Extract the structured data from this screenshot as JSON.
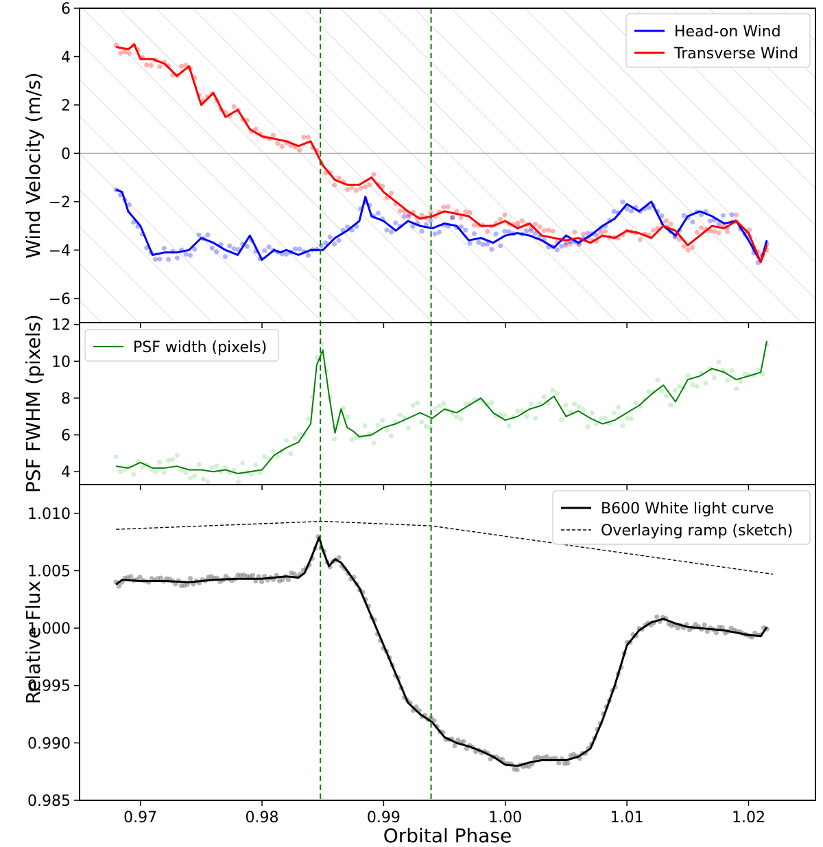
{
  "chart_data": [
    {
      "type": "line",
      "panel": "wind",
      "ylabel": "Wind Velocity (m/s)",
      "xlim": [
        0.965,
        1.0255
      ],
      "ylim": [
        -7,
        6
      ],
      "yticks": [
        -6,
        -4,
        -2,
        0,
        2,
        4,
        6
      ],
      "ytick_labels": [
        "−6",
        "−4",
        "−2",
        "0",
        "2",
        "4",
        "6"
      ],
      "hatched_background": true,
      "zero_line": 0,
      "legend_position": "top-right",
      "series": [
        {
          "name": "Head-on Wind",
          "color": "#0000ff",
          "x": [
            0.968,
            0.9685,
            0.969,
            0.97,
            0.971,
            0.972,
            0.973,
            0.974,
            0.975,
            0.976,
            0.977,
            0.978,
            0.979,
            0.98,
            0.981,
            0.9815,
            0.982,
            0.983,
            0.984,
            0.985,
            0.986,
            0.987,
            0.988,
            0.9885,
            0.989,
            0.99,
            0.991,
            0.992,
            0.993,
            0.994,
            0.995,
            0.996,
            0.997,
            0.998,
            0.999,
            1.0,
            1.001,
            1.002,
            1.003,
            1.004,
            1.005,
            1.006,
            1.007,
            1.008,
            1.009,
            1.01,
            1.011,
            1.012,
            1.013,
            1.014,
            1.015,
            1.016,
            1.017,
            1.018,
            1.019,
            1.02,
            1.021,
            1.0215
          ],
          "y": [
            -1.5,
            -1.6,
            -2.4,
            -3.0,
            -4.2,
            -4.1,
            -4.1,
            -4.0,
            -3.5,
            -3.7,
            -4.0,
            -4.2,
            -3.4,
            -4.4,
            -4.0,
            -4.1,
            -4.0,
            -4.2,
            -4.0,
            -4.0,
            -3.5,
            -3.2,
            -2.8,
            -1.8,
            -2.6,
            -2.8,
            -3.2,
            -2.8,
            -3.0,
            -3.1,
            -2.9,
            -3.0,
            -3.6,
            -3.5,
            -3.7,
            -3.4,
            -3.3,
            -3.4,
            -3.6,
            -3.9,
            -3.4,
            -3.7,
            -3.4,
            -3.0,
            -2.7,
            -2.1,
            -2.4,
            -2.0,
            -3.0,
            -3.4,
            -2.6,
            -2.4,
            -2.6,
            -2.9,
            -2.8,
            -3.6,
            -4.5,
            -3.6
          ]
        },
        {
          "name": "Transverse Wind",
          "color": "#ff0000",
          "x": [
            0.968,
            0.969,
            0.9695,
            0.97,
            0.971,
            0.972,
            0.973,
            0.974,
            0.975,
            0.976,
            0.977,
            0.978,
            0.979,
            0.98,
            0.981,
            0.982,
            0.983,
            0.984,
            0.9847,
            0.985,
            0.986,
            0.987,
            0.988,
            0.989,
            0.99,
            0.991,
            0.992,
            0.993,
            0.994,
            0.995,
            0.996,
            0.997,
            0.998,
            0.999,
            1.0,
            1.001,
            1.002,
            1.003,
            1.004,
            1.005,
            1.006,
            1.007,
            1.008,
            1.009,
            1.01,
            1.011,
            1.012,
            1.013,
            1.014,
            1.015,
            1.016,
            1.017,
            1.018,
            1.019,
            1.02,
            1.021,
            1.0215
          ],
          "y": [
            4.4,
            4.3,
            4.5,
            3.9,
            3.9,
            3.7,
            3.2,
            3.6,
            2.0,
            2.5,
            1.5,
            1.8,
            1.0,
            0.7,
            0.6,
            0.5,
            0.3,
            0.5,
            -0.2,
            -0.5,
            -1.1,
            -1.3,
            -1.3,
            -1.0,
            -1.6,
            -2.0,
            -2.4,
            -2.7,
            -2.6,
            -2.4,
            -2.5,
            -2.6,
            -3.0,
            -3.0,
            -2.8,
            -3.1,
            -2.9,
            -3.4,
            -3.5,
            -3.6,
            -3.5,
            -3.7,
            -3.4,
            -3.5,
            -3.2,
            -3.3,
            -3.5,
            -3.0,
            -3.2,
            -3.8,
            -3.4,
            -3.0,
            -3.1,
            -2.8,
            -3.3,
            -4.5,
            -3.8
          ]
        }
      ]
    },
    {
      "type": "line",
      "panel": "psf",
      "ylabel": "PSF FWHM (pixels)",
      "xlim": [
        0.965,
        1.0255
      ],
      "ylim": [
        3.3,
        12.1
      ],
      "yticks": [
        4,
        6,
        8,
        10,
        12
      ],
      "ytick_labels": [
        "4",
        "6",
        "8",
        "10",
        "12"
      ],
      "legend_position": "top-left",
      "series": [
        {
          "name": "PSF width (pixels)",
          "color": "#008000",
          "x": [
            0.968,
            0.969,
            0.97,
            0.971,
            0.972,
            0.973,
            0.974,
            0.975,
            0.976,
            0.977,
            0.978,
            0.979,
            0.98,
            0.981,
            0.982,
            0.983,
            0.984,
            0.9845,
            0.985,
            0.9855,
            0.986,
            0.9865,
            0.987,
            0.9875,
            0.988,
            0.989,
            0.99,
            0.991,
            0.992,
            0.993,
            0.994,
            0.995,
            0.996,
            0.997,
            0.998,
            0.999,
            1.0,
            1.001,
            1.002,
            1.003,
            1.004,
            1.005,
            1.006,
            1.007,
            1.008,
            1.009,
            1.01,
            1.011,
            1.012,
            1.013,
            1.014,
            1.015,
            1.016,
            1.017,
            1.018,
            1.019,
            1.02,
            1.021,
            1.0215
          ],
          "y": [
            4.3,
            4.2,
            4.5,
            4.2,
            4.2,
            4.3,
            4.1,
            4.1,
            4.0,
            4.1,
            3.9,
            4.0,
            4.1,
            4.9,
            5.3,
            5.6,
            6.6,
            9.8,
            10.6,
            8.2,
            6.1,
            7.4,
            6.4,
            6.2,
            5.9,
            6.0,
            6.4,
            6.6,
            6.9,
            7.2,
            6.9,
            7.4,
            7.2,
            7.6,
            8.0,
            7.2,
            6.8,
            7.0,
            7.4,
            7.6,
            8.1,
            7.0,
            7.3,
            6.9,
            6.6,
            6.8,
            7.2,
            7.6,
            8.2,
            8.7,
            7.8,
            9.0,
            9.2,
            9.6,
            9.4,
            9.0,
            9.2,
            9.4,
            11.1
          ]
        }
      ]
    },
    {
      "type": "line",
      "panel": "flux",
      "ylabel": "Relative Flux",
      "xlabel": "Orbital Phase",
      "xlim": [
        0.965,
        1.0255
      ],
      "ylim": [
        0.985,
        1.0125
      ],
      "yticks": [
        0.985,
        0.99,
        0.995,
        1.0,
        1.005,
        1.01
      ],
      "ytick_labels": [
        "0.985",
        "0.990",
        "0.995",
        "1.000",
        "1.005",
        "1.010"
      ],
      "xticks": [
        0.97,
        0.98,
        0.99,
        1.0,
        1.01,
        1.02
      ],
      "xtick_labels": [
        "0.97",
        "0.98",
        "0.99",
        "1.00",
        "1.01",
        "1.02"
      ],
      "legend_position": "top-right",
      "series": [
        {
          "name": "B600 White light curve",
          "color": "#000000",
          "x": [
            0.968,
            0.9685,
            0.97,
            0.972,
            0.974,
            0.976,
            0.978,
            0.98,
            0.982,
            0.983,
            0.9835,
            0.984,
            0.9847,
            0.985,
            0.9855,
            0.986,
            0.9865,
            0.987,
            0.988,
            0.989,
            0.99,
            0.991,
            0.992,
            0.993,
            0.994,
            0.995,
            0.996,
            0.997,
            0.998,
            0.999,
            1.0,
            1.001,
            1.002,
            1.003,
            1.004,
            1.005,
            1.006,
            1.007,
            1.008,
            1.009,
            1.01,
            1.011,
            1.012,
            1.013,
            1.014,
            1.015,
            1.016,
            1.017,
            1.018,
            1.019,
            1.02,
            1.021,
            1.0215
          ],
          "y": [
            1.0038,
            1.0042,
            1.0041,
            1.0041,
            1.004,
            1.0042,
            1.0043,
            1.0043,
            1.0045,
            1.0044,
            1.0048,
            1.006,
            1.0079,
            1.0068,
            1.0054,
            1.006,
            1.0057,
            1.005,
            1.0035,
            1.001,
            0.9985,
            0.996,
            0.9935,
            0.9925,
            0.9918,
            0.9905,
            0.99,
            0.9897,
            0.9893,
            0.9888,
            0.9881,
            0.988,
            0.9883,
            0.9885,
            0.9885,
            0.9885,
            0.9888,
            0.9895,
            0.992,
            0.995,
            0.9985,
            0.9998,
            1.0005,
            1.0008,
            1.0004,
            1.0001,
            1.0,
            0.9999,
            0.9998,
            0.9996,
            0.9994,
            0.9993,
            1.0001
          ]
        },
        {
          "name": "Overlaying ramp (sketch)",
          "color": "#000000",
          "style": "dashed",
          "x": [
            0.968,
            0.985,
            0.994,
            1.022
          ],
          "y": [
            1.0086,
            1.0093,
            1.0089,
            1.0047
          ]
        }
      ]
    },
    {
      "type": "annotation",
      "name": "event markers",
      "vlines_x": [
        0.9848,
        0.9939
      ],
      "color": "#008000",
      "style": "dashed"
    }
  ]
}
